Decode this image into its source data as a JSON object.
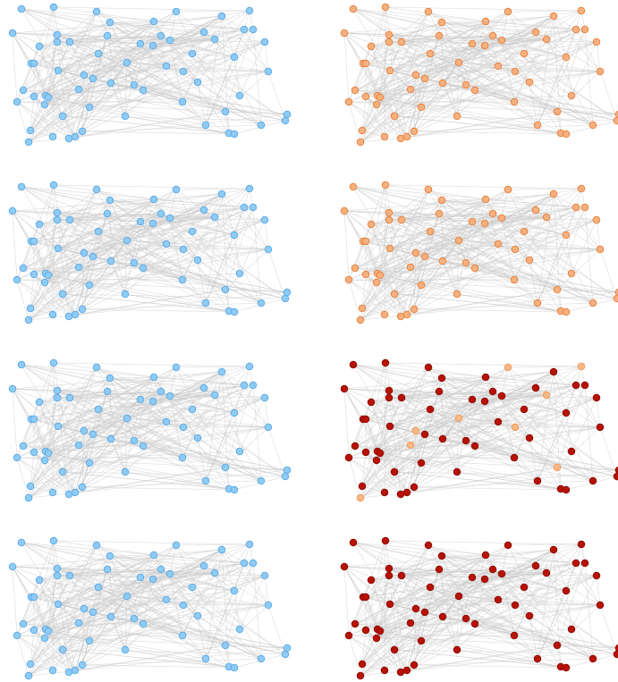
{
  "figure": {
    "panels": [
      {
        "row": 1,
        "col": 1,
        "node_fill": "#8ecbf5",
        "node_stroke": "#5aa8e4",
        "highlight_fill": "#8ecbf5",
        "highlight_stroke": "#5aa8e4",
        "highlighted_nodes": []
      },
      {
        "row": 1,
        "col": 2,
        "node_fill": "#f7b07e",
        "node_stroke": "#e47f3a",
        "highlight_fill": "#f7b07e",
        "highlight_stroke": "#e47f3a",
        "highlighted_nodes": []
      },
      {
        "row": 2,
        "col": 1,
        "node_fill": "#8ecbf5",
        "node_stroke": "#5aa8e4",
        "highlight_fill": "#8ecbf5",
        "highlight_stroke": "#5aa8e4",
        "highlighted_nodes": []
      },
      {
        "row": 2,
        "col": 2,
        "node_fill": "#f7b07e",
        "node_stroke": "#e47f3a",
        "highlight_fill": "#f7b07e",
        "highlight_stroke": "#e47f3a",
        "highlighted_nodes": []
      },
      {
        "row": 3,
        "col": 1,
        "node_fill": "#8ecbf5",
        "node_stroke": "#5aa8e4",
        "highlight_fill": "#8ecbf5",
        "highlight_stroke": "#5aa8e4",
        "highlighted_nodes": []
      },
      {
        "row": 3,
        "col": 2,
        "node_fill": "#b81205",
        "node_stroke": "#8a0d03",
        "highlight_fill": "#f9b784",
        "highlight_stroke": "#eb9a5c",
        "highlighted_nodes": [
          5,
          7,
          16,
          23,
          28,
          49,
          52,
          55,
          63
        ]
      },
      {
        "row": 4,
        "col": 1,
        "node_fill": "#8ecbf5",
        "node_stroke": "#5aa8e4",
        "highlight_fill": "#8ecbf5",
        "highlight_stroke": "#5aa8e4",
        "highlighted_nodes": []
      },
      {
        "row": 4,
        "col": 2,
        "node_fill": "#b81205",
        "node_stroke": "#8a0d03",
        "highlight_fill": "#b81205",
        "highlight_stroke": "#8a0d03",
        "highlighted_nodes": []
      }
    ],
    "edge_color": "#c9c9c9",
    "node_count": 64
  }
}
